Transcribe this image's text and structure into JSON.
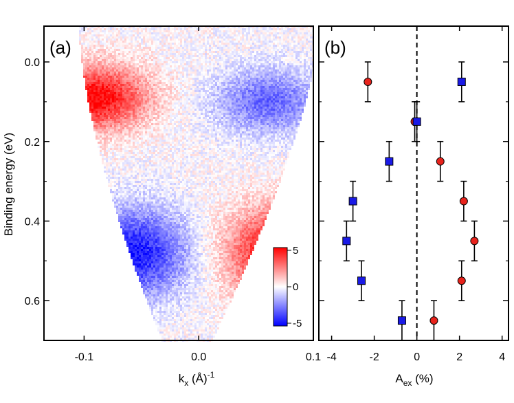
{
  "chart_data": [
    {
      "panel": "(a)",
      "type": "heatmap",
      "xlabel": "k",
      "xlabel_sub": "x",
      "xlabel_rest": " (Å)",
      "xlabel_sup": "-1",
      "ylabel": "Binding energy (eV)",
      "xlim": [
        -0.135,
        0.1
      ],
      "ylim": [
        0.7,
        -0.09
      ],
      "x_ticks": [
        -0.1,
        0.0,
        0.1
      ],
      "x_tick_labels": [
        "-0.1",
        "0.0",
        "0.1"
      ],
      "y_ticks": [
        0.0,
        0.2,
        0.4,
        0.6
      ],
      "y_tick_labels": [
        "0.0",
        "0.2",
        "0.4",
        "0.6"
      ],
      "colorbar": {
        "range": [
          -5,
          5
        ],
        "ticks": [
          5,
          0,
          -5
        ],
        "tick_labels": [
          "5",
          "0",
          "-5"
        ],
        "colors": {
          "max": "#ff0000",
          "mid": "#ffffff",
          "min": "#0000ff"
        }
      },
      "features": [
        {
          "region": "upper-left",
          "sign": "positive",
          "center_k": -0.09,
          "center_E": 0.09,
          "magnitude": 5
        },
        {
          "region": "upper-right",
          "sign": "negative",
          "center_k": 0.06,
          "center_E": 0.1,
          "magnitude": 3
        },
        {
          "region": "lower-left",
          "sign": "negative",
          "center_k": -0.055,
          "center_E": 0.48,
          "magnitude": 4.5
        },
        {
          "region": "lower-right",
          "sign": "positive",
          "center_k": 0.07,
          "center_E": 0.48,
          "magnitude": 5
        }
      ]
    },
    {
      "panel": "(b)",
      "type": "scatter",
      "xlabel": "A",
      "xlabel_sub": "ex",
      "xlabel_rest": " (%)",
      "xlim": [
        -4.6,
        4.3
      ],
      "ylim": [
        0.7,
        -0.09
      ],
      "x_ticks": [
        -4,
        -2,
        0,
        2,
        4
      ],
      "x_tick_labels": [
        "-4",
        "-2",
        "0",
        "2",
        "4"
      ],
      "y_ticks": [
        0.0,
        0.2,
        0.4,
        0.6
      ],
      "zero_line": true,
      "series": [
        {
          "marker": "circle",
          "color": "#e8231c",
          "points": [
            {
              "x": -2.3,
              "y": 0.05,
              "err": 0.05
            },
            {
              "x": -0.1,
              "y": 0.15,
              "err": 0.05
            },
            {
              "x": 1.1,
              "y": 0.25,
              "err": 0.05
            },
            {
              "x": 2.2,
              "y": 0.35,
              "err": 0.05
            },
            {
              "x": 2.7,
              "y": 0.45,
              "err": 0.05
            },
            {
              "x": 2.1,
              "y": 0.55,
              "err": 0.05
            },
            {
              "x": 0.8,
              "y": 0.65,
              "err": 0.05
            }
          ]
        },
        {
          "marker": "square",
          "color": "#1a1ae6",
          "points": [
            {
              "x": 2.1,
              "y": 0.05,
              "err": 0.05
            },
            {
              "x": 0.0,
              "y": 0.15,
              "err": 0.05
            },
            {
              "x": -1.3,
              "y": 0.25,
              "err": 0.05
            },
            {
              "x": -3.0,
              "y": 0.35,
              "err": 0.05
            },
            {
              "x": -3.3,
              "y": 0.45,
              "err": 0.05
            },
            {
              "x": -2.6,
              "y": 0.55,
              "err": 0.05
            },
            {
              "x": -0.7,
              "y": 0.65,
              "err": 0.05
            }
          ]
        }
      ]
    }
  ]
}
